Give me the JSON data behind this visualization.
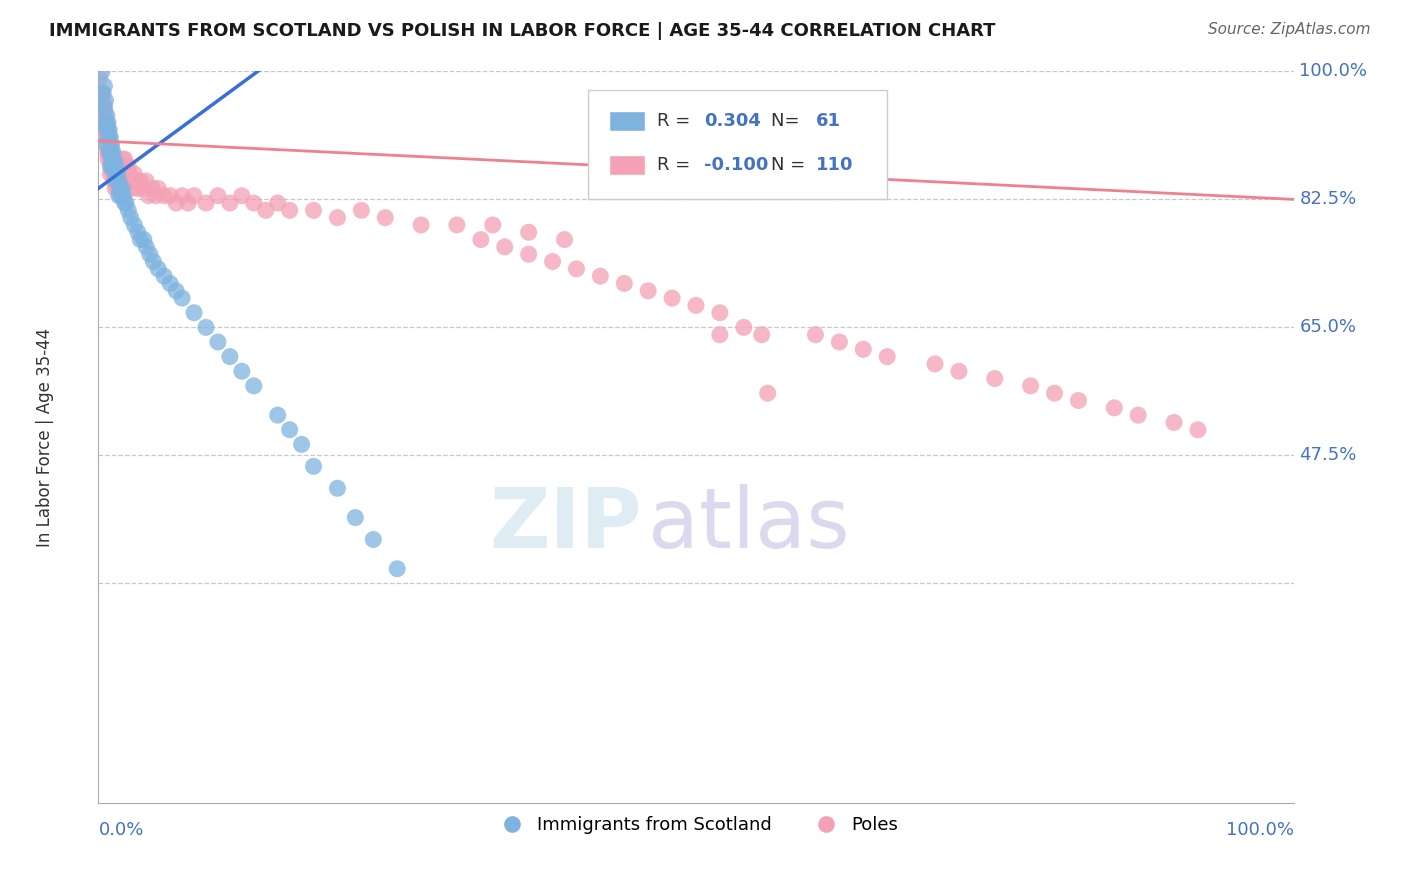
{
  "title": "IMMIGRANTS FROM SCOTLAND VS POLISH IN LABOR FORCE | AGE 35-44 CORRELATION CHART",
  "source": "Source: ZipAtlas.com",
  "ylabel": "In Labor Force | Age 35-44",
  "xlim": [
    0.0,
    1.0
  ],
  "ylim": [
    0.0,
    1.0
  ],
  "ytick_labels": [
    "100.0%",
    "82.5%",
    "65.0%",
    "47.5%"
  ],
  "ytick_positions": [
    1.0,
    0.825,
    0.65,
    0.475
  ],
  "xtick_left": "0.0%",
  "xtick_right": "100.0%",
  "hline_positions": [
    1.0,
    0.825,
    0.65,
    0.475,
    0.3
  ],
  "legend_r_scotland": "0.304",
  "legend_n_scotland": "61",
  "legend_r_poles": "-0.100",
  "legend_n_poles": "110",
  "scotland_color": "#7eb3e0",
  "poles_color": "#f4a0b5",
  "scotland_line_color": "#3a6fd8",
  "poles_line_color": "#f08090",
  "background_color": "#ffffff",
  "scot_x": [
    0.003,
    0.004,
    0.005,
    0.005,
    0.006,
    0.006,
    0.007,
    0.007,
    0.007,
    0.008,
    0.008,
    0.009,
    0.009,
    0.01,
    0.01,
    0.01,
    0.011,
    0.011,
    0.012,
    0.012,
    0.013,
    0.014,
    0.015,
    0.015,
    0.016,
    0.017,
    0.017,
    0.018,
    0.019,
    0.02,
    0.021,
    0.022,
    0.023,
    0.025,
    0.027,
    0.03,
    0.033,
    0.035,
    0.038,
    0.04,
    0.043,
    0.046,
    0.05,
    0.055,
    0.06,
    0.065,
    0.07,
    0.08,
    0.09,
    0.1,
    0.11,
    0.12,
    0.13,
    0.15,
    0.16,
    0.17,
    0.18,
    0.2,
    0.215,
    0.23,
    0.25
  ],
  "scot_y": [
    1.0,
    0.97,
    0.98,
    0.95,
    0.96,
    0.93,
    0.94,
    0.92,
    0.9,
    0.93,
    0.91,
    0.92,
    0.89,
    0.91,
    0.89,
    0.87,
    0.9,
    0.88,
    0.89,
    0.87,
    0.88,
    0.86,
    0.87,
    0.85,
    0.86,
    0.85,
    0.83,
    0.84,
    0.83,
    0.84,
    0.83,
    0.82,
    0.82,
    0.81,
    0.8,
    0.79,
    0.78,
    0.77,
    0.77,
    0.76,
    0.75,
    0.74,
    0.73,
    0.72,
    0.71,
    0.7,
    0.69,
    0.67,
    0.65,
    0.63,
    0.61,
    0.59,
    0.57,
    0.53,
    0.51,
    0.49,
    0.46,
    0.43,
    0.39,
    0.36,
    0.32
  ],
  "poles_x": [
    0.001,
    0.002,
    0.003,
    0.003,
    0.004,
    0.004,
    0.005,
    0.005,
    0.005,
    0.006,
    0.006,
    0.007,
    0.007,
    0.007,
    0.008,
    0.008,
    0.008,
    0.009,
    0.009,
    0.01,
    0.01,
    0.01,
    0.011,
    0.011,
    0.012,
    0.012,
    0.013,
    0.013,
    0.014,
    0.014,
    0.015,
    0.015,
    0.016,
    0.016,
    0.017,
    0.018,
    0.018,
    0.019,
    0.02,
    0.02,
    0.021,
    0.022,
    0.023,
    0.024,
    0.025,
    0.026,
    0.027,
    0.028,
    0.03,
    0.032,
    0.033,
    0.035,
    0.037,
    0.04,
    0.042,
    0.045,
    0.048,
    0.05,
    0.055,
    0.06,
    0.065,
    0.07,
    0.075,
    0.08,
    0.09,
    0.1,
    0.11,
    0.12,
    0.13,
    0.14,
    0.15,
    0.16,
    0.18,
    0.2,
    0.22,
    0.24,
    0.27,
    0.3,
    0.33,
    0.36,
    0.39,
    0.32,
    0.34,
    0.36,
    0.38,
    0.4,
    0.42,
    0.44,
    0.46,
    0.48,
    0.5,
    0.52,
    0.52,
    0.54,
    0.555,
    0.56,
    0.6,
    0.62,
    0.64,
    0.66,
    0.7,
    0.72,
    0.75,
    0.78,
    0.8,
    0.82,
    0.85,
    0.87,
    0.9,
    0.92
  ],
  "poles_y": [
    0.99,
    0.97,
    0.97,
    0.95,
    0.96,
    0.94,
    0.95,
    0.93,
    0.91,
    0.94,
    0.92,
    0.93,
    0.91,
    0.89,
    0.92,
    0.9,
    0.88,
    0.91,
    0.89,
    0.9,
    0.88,
    0.86,
    0.89,
    0.87,
    0.88,
    0.86,
    0.87,
    0.85,
    0.86,
    0.84,
    0.87,
    0.85,
    0.86,
    0.84,
    0.85,
    0.87,
    0.85,
    0.86,
    0.88,
    0.86,
    0.87,
    0.88,
    0.87,
    0.86,
    0.87,
    0.86,
    0.85,
    0.84,
    0.86,
    0.85,
    0.84,
    0.85,
    0.84,
    0.85,
    0.83,
    0.84,
    0.83,
    0.84,
    0.83,
    0.83,
    0.82,
    0.83,
    0.82,
    0.83,
    0.82,
    0.83,
    0.82,
    0.83,
    0.82,
    0.81,
    0.82,
    0.81,
    0.81,
    0.8,
    0.81,
    0.8,
    0.79,
    0.79,
    0.79,
    0.78,
    0.77,
    0.77,
    0.76,
    0.75,
    0.74,
    0.73,
    0.72,
    0.71,
    0.7,
    0.69,
    0.68,
    0.67,
    0.64,
    0.65,
    0.64,
    0.56,
    0.64,
    0.63,
    0.62,
    0.61,
    0.6,
    0.59,
    0.58,
    0.57,
    0.56,
    0.55,
    0.54,
    0.53,
    0.52,
    0.51
  ]
}
